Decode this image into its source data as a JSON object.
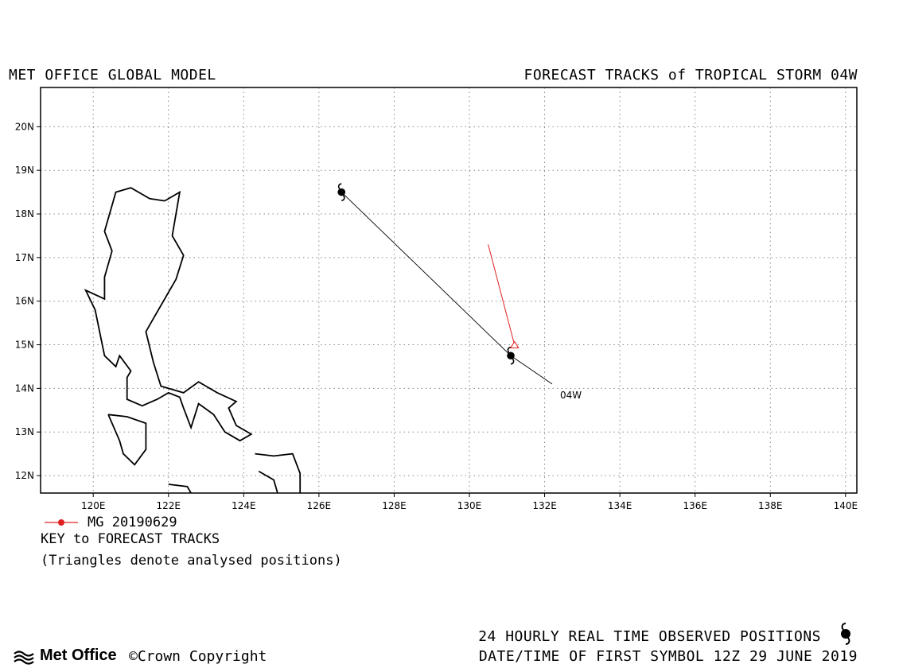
{
  "header": {
    "left_title": "MET OFFICE GLOBAL MODEL",
    "right_title": "FORECAST TRACKS of TROPICAL STORM 04W"
  },
  "map": {
    "lon_range": [
      118.6,
      140.3
    ],
    "lat_range": [
      11.6,
      20.9
    ],
    "lon_ticks": [
      "120E",
      "122E",
      "124E",
      "126E",
      "128E",
      "130E",
      "132E",
      "134E",
      "136E",
      "138E",
      "140E"
    ],
    "lat_ticks": [
      "12N",
      "13N",
      "14N",
      "15N",
      "16N",
      "17N",
      "18N",
      "19N",
      "20N"
    ],
    "grid": "dotted",
    "storm_label": "04W",
    "observed_track": [
      [
        126.6,
        18.5
      ],
      [
        131.1,
        14.75
      ],
      [
        132.2,
        14.1
      ]
    ],
    "observed_symbols": [
      [
        126.6,
        18.5
      ],
      [
        131.1,
        14.75
      ]
    ],
    "forecast_track": {
      "name": "MG 20190629",
      "color": "#e02020",
      "points": [
        [
          131.2,
          15.0
        ],
        [
          130.5,
          17.3
        ]
      ]
    },
    "coastlines": [
      [
        [
          121.9,
          18.3
        ],
        [
          122.3,
          18.5
        ],
        [
          122.1,
          17.5
        ],
        [
          122.4,
          17.05
        ],
        [
          122.2,
          16.5
        ],
        [
          121.6,
          15.6
        ],
        [
          121.4,
          15.3
        ],
        [
          121.6,
          14.6
        ],
        [
          121.8,
          14.05
        ],
        [
          122.4,
          13.9
        ],
        [
          122.8,
          14.15
        ],
        [
          123.3,
          13.9
        ],
        [
          123.8,
          13.7
        ],
        [
          123.6,
          13.55
        ],
        [
          123.8,
          13.15
        ],
        [
          124.2,
          12.95
        ],
        [
          123.9,
          12.8
        ],
        [
          123.5,
          13.0
        ],
        [
          123.2,
          13.4
        ],
        [
          122.8,
          13.65
        ],
        [
          122.6,
          13.1
        ],
        [
          122.4,
          13.55
        ],
        [
          122.3,
          13.8
        ],
        [
          122.0,
          13.9
        ],
        [
          121.7,
          13.75
        ],
        [
          121.3,
          13.6
        ],
        [
          120.9,
          13.75
        ],
        [
          120.9,
          14.25
        ],
        [
          121.0,
          14.4
        ],
        [
          120.7,
          14.75
        ],
        [
          120.6,
          14.5
        ],
        [
          120.3,
          14.75
        ],
        [
          120.05,
          15.8
        ],
        [
          119.8,
          16.25
        ],
        [
          120.3,
          16.05
        ],
        [
          120.3,
          16.55
        ],
        [
          120.5,
          17.15
        ],
        [
          120.3,
          17.6
        ],
        [
          120.6,
          18.5
        ],
        [
          121.0,
          18.6
        ],
        [
          121.5,
          18.35
        ],
        [
          121.9,
          18.3
        ]
      ],
      [
        [
          120.4,
          13.4
        ],
        [
          120.9,
          13.35
        ],
        [
          121.4,
          13.2
        ],
        [
          121.4,
          12.6
        ],
        [
          121.1,
          12.25
        ],
        [
          120.8,
          12.5
        ],
        [
          120.7,
          12.8
        ],
        [
          120.4,
          13.4
        ]
      ],
      [
        [
          122.0,
          11.8
        ],
        [
          122.5,
          11.75
        ],
        [
          122.6,
          11.6
        ]
      ],
      [
        [
          124.3,
          12.5
        ],
        [
          124.8,
          12.45
        ],
        [
          125.3,
          12.5
        ],
        [
          125.5,
          12.05
        ],
        [
          125.5,
          11.6
        ]
      ],
      [
        [
          124.4,
          12.1
        ],
        [
          124.8,
          11.9
        ],
        [
          124.9,
          11.6
        ]
      ]
    ]
  },
  "key": {
    "legend_label": "MG 20190629",
    "title": "KEY to FORECAST TRACKS",
    "note": "(Triangles denote analysed positions)"
  },
  "footer": {
    "observed": "24 HOURLY REAL TIME OBSERVED POSITIONS",
    "first_symbol": "DATE/TIME OF FIRST SYMBOL 12Z 29 JUNE 2019",
    "logo_text": "Met Office",
    "copyright": "©Crown Copyright"
  }
}
